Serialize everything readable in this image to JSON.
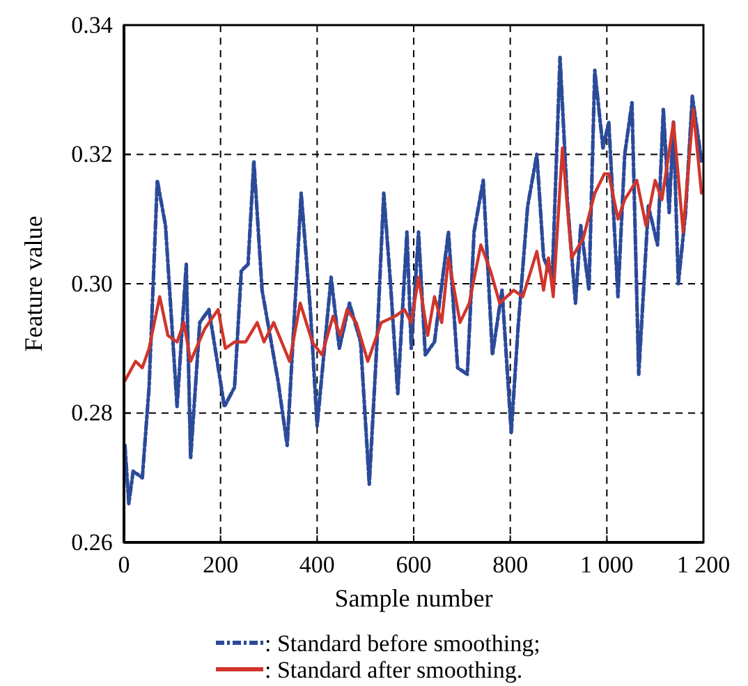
{
  "chart_data": {
    "type": "line",
    "xlabel": "Sample number",
    "ylabel": "Feature value",
    "xlim": [
      0,
      1200
    ],
    "xticks": [
      0,
      200,
      400,
      600,
      800,
      {
        "value": 1000,
        "label": "1 000"
      },
      {
        "value": 1200,
        "label": "1 200"
      }
    ],
    "ylim": [
      0.26,
      0.34
    ],
    "yticks": [
      {
        "value": 0.26,
        "label": "0.26"
      },
      {
        "value": 0.28,
        "label": "0.28"
      },
      {
        "value": 0.3,
        "label": "0.30"
      },
      {
        "value": 0.32,
        "label": "0.32"
      },
      {
        "value": 0.34,
        "label": "0.34"
      }
    ],
    "grid": true,
    "legend": "bottom",
    "marker": "none",
    "series": [
      {
        "name": ": Standard before smoothing;",
        "color": "#2b4a9a",
        "line_style": "dashed",
        "x": [
          2,
          10,
          19,
          38,
          52,
          69,
          86,
          110,
          129,
          138,
          157,
          176,
          208,
          229,
          243,
          257,
          269,
          286,
          319,
          338,
          367,
          386,
          400,
          429,
          446,
          467,
          490,
          508,
          524,
          538,
          552,
          567,
          586,
          595,
          610,
          624,
          643,
          672,
          691,
          711,
          725,
          744,
          763,
          783,
          802,
          816,
          836,
          855,
          869,
          887,
          903,
          918,
          935,
          946,
          963,
          975,
          992,
          1004,
          1023,
          1037,
          1052,
          1066,
          1086,
          1105,
          1117,
          1129,
          1138,
          1148,
          1163,
          1177,
          1196
        ],
        "values": [
          0.275,
          0.266,
          0.271,
          0.27,
          0.284,
          0.316,
          0.309,
          0.281,
          0.303,
          0.273,
          0.294,
          0.296,
          0.281,
          0.284,
          0.302,
          0.303,
          0.319,
          0.299,
          0.285,
          0.275,
          0.314,
          0.296,
          0.278,
          0.301,
          0.29,
          0.297,
          0.291,
          0.269,
          0.291,
          0.314,
          0.3,
          0.283,
          0.308,
          0.29,
          0.308,
          0.289,
          0.291,
          0.308,
          0.287,
          0.286,
          0.308,
          0.316,
          0.289,
          0.299,
          0.277,
          0.293,
          0.312,
          0.32,
          0.304,
          0.301,
          0.335,
          0.313,
          0.297,
          0.309,
          0.299,
          0.333,
          0.321,
          0.325,
          0.298,
          0.32,
          0.328,
          0.286,
          0.312,
          0.306,
          0.327,
          0.311,
          0.325,
          0.3,
          0.311,
          0.329,
          0.319
        ]
      },
      {
        "name": ": Standard after smoothing.",
        "color": "#d0352b",
        "line_style": "solid",
        "x": [
          2,
          24,
          38,
          52,
          74,
          91,
          110,
          124,
          138,
          167,
          195,
          210,
          229,
          252,
          276,
          290,
          310,
          343,
          365,
          390,
          410,
          433,
          448,
          462,
          481,
          505,
          533,
          562,
          581,
          595,
          610,
          629,
          643,
          658,
          672,
          696,
          715,
          739,
          759,
          778,
          807,
          826,
          855,
          869,
          879,
          889,
          908,
          927,
          951,
          975,
          995,
          1004,
          1023,
          1037,
          1062,
          1081,
          1100,
          1114,
          1138,
          1158,
          1179,
          1196
        ],
        "values": [
          0.285,
          0.288,
          0.287,
          0.29,
          0.298,
          0.292,
          0.291,
          0.294,
          0.288,
          0.293,
          0.296,
          0.29,
          0.291,
          0.291,
          0.294,
          0.291,
          0.294,
          0.288,
          0.297,
          0.291,
          0.289,
          0.295,
          0.292,
          0.296,
          0.294,
          0.288,
          0.294,
          0.295,
          0.296,
          0.294,
          0.301,
          0.292,
          0.298,
          0.294,
          0.304,
          0.294,
          0.297,
          0.306,
          0.302,
          0.297,
          0.299,
          0.298,
          0.305,
          0.299,
          0.304,
          0.298,
          0.321,
          0.304,
          0.307,
          0.314,
          0.317,
          0.317,
          0.31,
          0.313,
          0.316,
          0.309,
          0.316,
          0.313,
          0.325,
          0.308,
          0.327,
          0.314
        ]
      }
    ]
  }
}
